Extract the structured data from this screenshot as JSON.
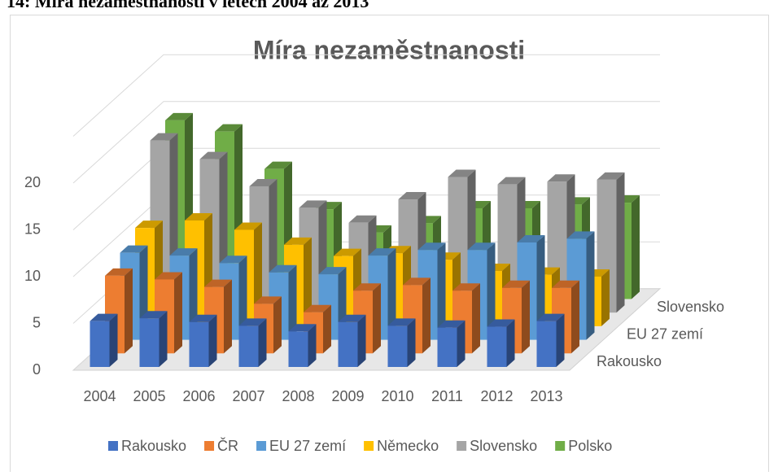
{
  "caption": "14: Míra nezaměstnanosti v letech 2004 až 2013",
  "chart_data": {
    "type": "bar3d",
    "title": "Míra nezaměstnanosti",
    "categories": [
      "2004",
      "2005",
      "2006",
      "2007",
      "2008",
      "2009",
      "2010",
      "2011",
      "2012",
      "2013"
    ],
    "series": [
      {
        "name": "Rakousko",
        "color": "#4472c4",
        "values": [
          4.9,
          5.2,
          4.8,
          4.4,
          3.8,
          4.8,
          4.4,
          4.2,
          4.3,
          4.9
        ]
      },
      {
        "name": "ČR",
        "color": "#ed7d31",
        "values": [
          8.3,
          7.9,
          7.1,
          5.3,
          4.4,
          6.7,
          7.3,
          6.7,
          7.0,
          7.0
        ]
      },
      {
        "name": "EU 27 zemí",
        "color": "#5b9bd5",
        "values": [
          9.3,
          9.0,
          8.2,
          7.2,
          7.0,
          9.0,
          9.6,
          9.6,
          10.4,
          10.8
        ]
      },
      {
        "name": "Německo",
        "color": "#ffc000",
        "values": [
          10.5,
          11.3,
          10.3,
          8.7,
          7.5,
          7.8,
          7.1,
          5.9,
          5.5,
          5.3
        ]
      },
      {
        "name": "Slovensko",
        "color": "#a5a5a5",
        "values": [
          18.4,
          16.4,
          13.5,
          11.2,
          9.6,
          12.1,
          14.5,
          13.7,
          14.0,
          14.2
        ]
      },
      {
        "name": "Polsko",
        "color": "#70ad47",
        "values": [
          19.1,
          17.9,
          13.9,
          9.6,
          7.1,
          8.1,
          9.7,
          9.7,
          10.1,
          10.3
        ]
      }
    ],
    "ylim": [
      0,
      25
    ],
    "yticks": [
      0,
      5,
      10,
      15,
      20
    ],
    "grid": true,
    "legend": "bottom"
  }
}
